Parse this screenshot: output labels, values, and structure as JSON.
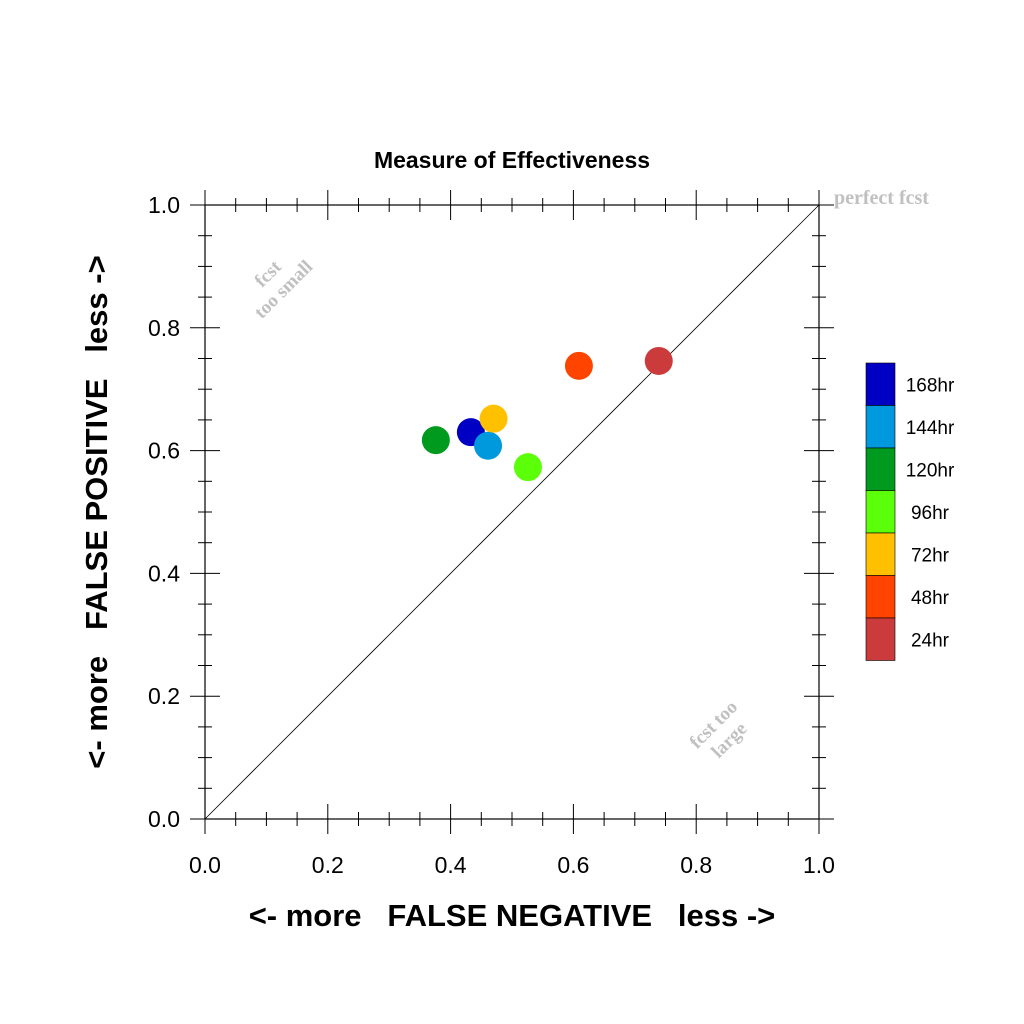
{
  "chart_data": {
    "type": "scatter",
    "title": "Measure of Effectiveness",
    "xlabel": "<- more   FALSE NEGATIVE   less ->",
    "ylabel": "<- more   FALSE POSITIVE   less ->",
    "xlim": [
      0.0,
      1.0
    ],
    "ylim": [
      0.0,
      1.0
    ],
    "xticks": [
      "0.0",
      "0.2",
      "0.4",
      "0.6",
      "0.8",
      "1.0"
    ],
    "yticks": [
      "0.0",
      "0.2",
      "0.4",
      "0.6",
      "0.8",
      "1.0"
    ],
    "grid": false,
    "legend_position": "right",
    "reference_line": "diagonal",
    "annotations": {
      "perfect": "perfect fcst",
      "too_small_1": "fcst",
      "too_small_2": "too small",
      "too_large_1": "fcst too",
      "too_large_2": "large"
    },
    "series": [
      {
        "name": "168hr",
        "color": "#0000c4",
        "x": 0.433,
        "y": 0.63
      },
      {
        "name": "144hr",
        "color": "#0099dd",
        "x": 0.461,
        "y": 0.608
      },
      {
        "name": "120hr",
        "color": "#009a1e",
        "x": 0.376,
        "y": 0.617
      },
      {
        "name": "96hr",
        "color": "#5cff0a",
        "x": 0.526,
        "y": 0.573
      },
      {
        "name": "72hr",
        "color": "#ffc000",
        "x": 0.47,
        "y": 0.652
      },
      {
        "name": "48hr",
        "color": "#ff4400",
        "x": 0.609,
        "y": 0.738
      },
      {
        "name": "24hr",
        "color": "#cc3b3b",
        "x": 0.739,
        "y": 0.746
      }
    ]
  }
}
